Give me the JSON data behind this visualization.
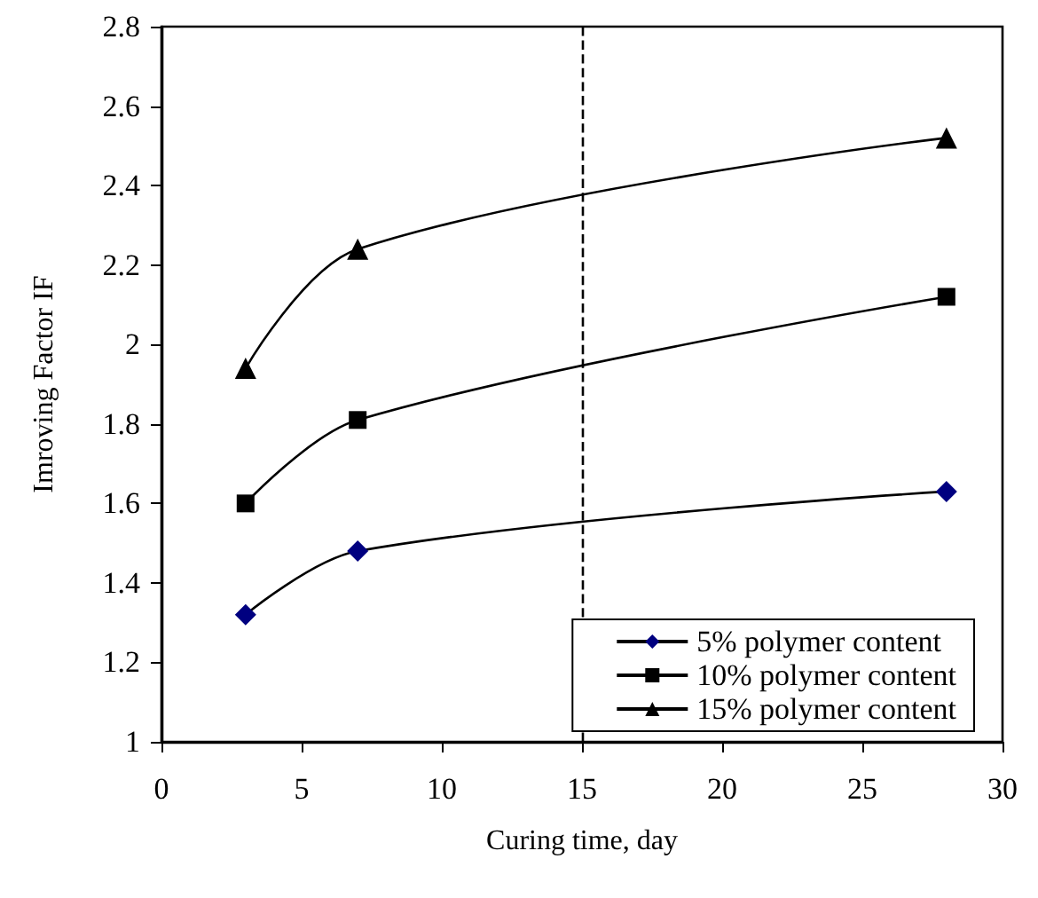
{
  "chart_data": {
    "type": "line",
    "xlabel": "Curing time, day",
    "ylabel": "Imroving Factor IF",
    "xlim": [
      0,
      30
    ],
    "xticks": [
      0,
      5,
      10,
      15,
      20,
      25,
      30
    ],
    "ylim": [
      1,
      2.8
    ],
    "yticks": [
      1,
      1.2,
      1.4,
      1.6,
      1.8,
      2,
      2.2,
      2.4,
      2.6,
      2.8
    ],
    "grid": false,
    "legend": "bottom right",
    "line_style": "solid",
    "x": [
      3,
      7,
      28
    ],
    "series": [
      {
        "name": "5% polymer content",
        "color": "#000080",
        "marker": "diamond",
        "values": [
          1.32,
          1.48,
          1.63
        ]
      },
      {
        "name": "10% polymer content",
        "color": "#000000",
        "marker": "square",
        "values": [
          1.6,
          1.81,
          2.12
        ]
      },
      {
        "name": "15% polymer content",
        "color": "#000000",
        "marker": "triangle",
        "values": [
          1.94,
          2.24,
          2.52
        ]
      }
    ],
    "ref_lines": [
      {
        "axis": "x",
        "value": 15,
        "line_style": "dashed",
        "color": "#000000"
      }
    ]
  }
}
